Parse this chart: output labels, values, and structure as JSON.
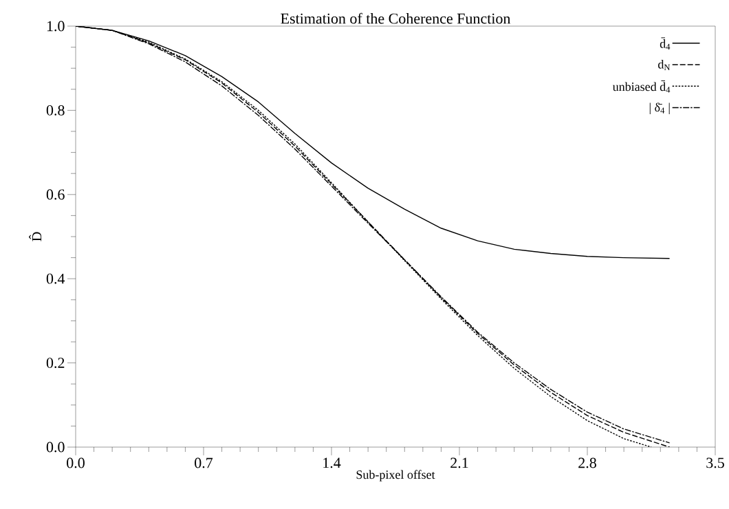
{
  "chart_data": {
    "type": "line",
    "title": "Estimation of the Coherence Function",
    "xlabel": "Sub-pixel offset",
    "ylabel": "D̂",
    "xlim": [
      0,
      3.5
    ],
    "ylim": [
      0,
      1
    ],
    "xticks": [
      {
        "value": 0,
        "label": "0.0"
      },
      0.7,
      1.4,
      2.1,
      2.8,
      3.5
    ],
    "yticks": [
      {
        "value": 0,
        "label": "0.0"
      },
      0.2,
      0.4,
      0.6,
      0.8,
      {
        "value": 1,
        "label": "1.0"
      }
    ],
    "grid": false,
    "legend": "top right",
    "marker": "none",
    "series": [
      {
        "name": "d̄$_{4}$",
        "color": "#000000",
        "line_style": "solid",
        "x": [
          0,
          0.2,
          0.4,
          0.6,
          0.8,
          1.0,
          1.2,
          1.4,
          1.6,
          1.8,
          2.0,
          2.2,
          2.4,
          2.6,
          2.8,
          3.0,
          3.25
        ],
        "values": [
          1.0,
          0.99,
          0.965,
          0.93,
          0.88,
          0.82,
          0.745,
          0.675,
          0.615,
          0.565,
          0.52,
          0.49,
          0.47,
          0.46,
          0.453,
          0.45,
          0.448
        ]
      },
      {
        "name": "d$_{N}$",
        "color": "#000000",
        "line_style": "dashed",
        "x": [
          0,
          0.2,
          0.4,
          0.6,
          0.8,
          1.0,
          1.2,
          1.4,
          1.6,
          1.8,
          2.0,
          2.2,
          2.4,
          2.6,
          2.8,
          3.0,
          3.25
        ],
        "values": [
          1.0,
          0.99,
          0.96,
          0.92,
          0.865,
          0.795,
          0.715,
          0.625,
          0.535,
          0.445,
          0.355,
          0.27,
          0.195,
          0.13,
          0.075,
          0.035,
          0.0
        ]
      },
      {
        "name": "unbiased d̄$_{4}$",
        "color": "#000000",
        "line_style": "dotted",
        "x": [
          0,
          0.2,
          0.4,
          0.6,
          0.8,
          1.0,
          1.2,
          1.4,
          1.6,
          1.8,
          2.0,
          2.2,
          2.4,
          2.6,
          2.8,
          3.0,
          3.15
        ],
        "values": [
          1.0,
          0.99,
          0.962,
          0.922,
          0.868,
          0.8,
          0.72,
          0.628,
          0.535,
          0.443,
          0.352,
          0.265,
          0.187,
          0.12,
          0.063,
          0.02,
          0.0
        ]
      },
      {
        "name": "| δ̄$_{4}$ |",
        "color": "#000000",
        "line_style": "dashdot",
        "x": [
          0,
          0.2,
          0.4,
          0.6,
          0.8,
          1.0,
          1.2,
          1.4,
          1.6,
          1.8,
          2.0,
          2.2,
          2.4,
          2.6,
          2.8,
          3.0,
          3.25
        ],
        "values": [
          1.0,
          0.99,
          0.958,
          0.915,
          0.858,
          0.788,
          0.708,
          0.62,
          0.532,
          0.445,
          0.357,
          0.273,
          0.2,
          0.137,
          0.083,
          0.043,
          0.01
        ]
      }
    ]
  }
}
